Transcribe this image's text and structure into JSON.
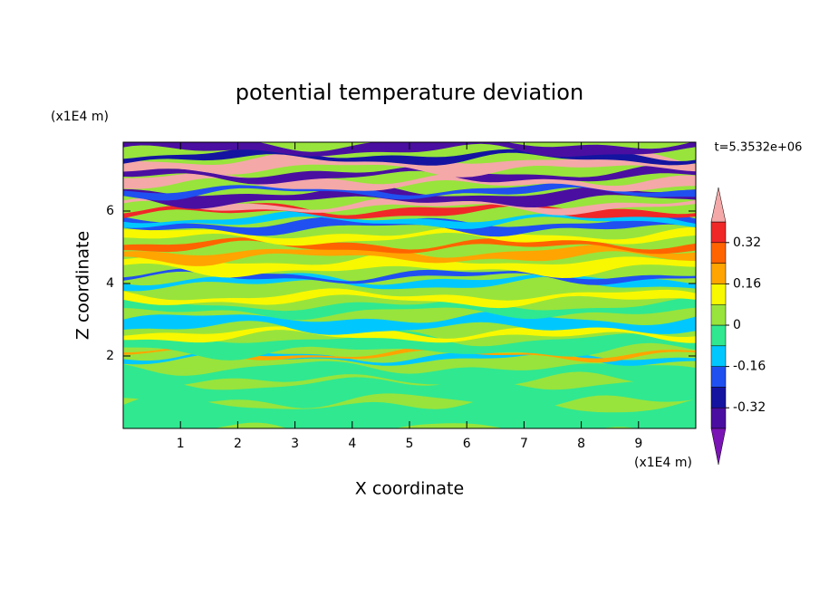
{
  "chart_data": {
    "type": "contour",
    "title": "potential temperature deviation",
    "xlabel": "X coordinate",
    "ylabel": "Z coordinate",
    "x_unit": "(x1E4 m)",
    "y_unit": "(x1E4 m)",
    "annotation": "t=5.3532e+06",
    "xlim": [
      0,
      10
    ],
    "ylim": [
      0,
      7.9
    ],
    "xticks": [
      1,
      2,
      3,
      4,
      5,
      6,
      7,
      8,
      9
    ],
    "yticks": [
      2,
      4,
      6
    ],
    "levels": [
      -0.4,
      -0.32,
      -0.24,
      -0.16,
      -0.08,
      0,
      0.08,
      0.16,
      0.24,
      0.32,
      0.4
    ],
    "colors": [
      "#7a14b4",
      "#4a0fa0",
      "#1414a0",
      "#2050f0",
      "#00c8ff",
      "#30e890",
      "#98e43c",
      "#f8f800",
      "#ffa400",
      "#ff6400",
      "#f02828",
      "#f4a8a8"
    ],
    "colorbar_ticks": [
      -0.32,
      -0.16,
      0,
      0.16,
      0.32
    ]
  }
}
